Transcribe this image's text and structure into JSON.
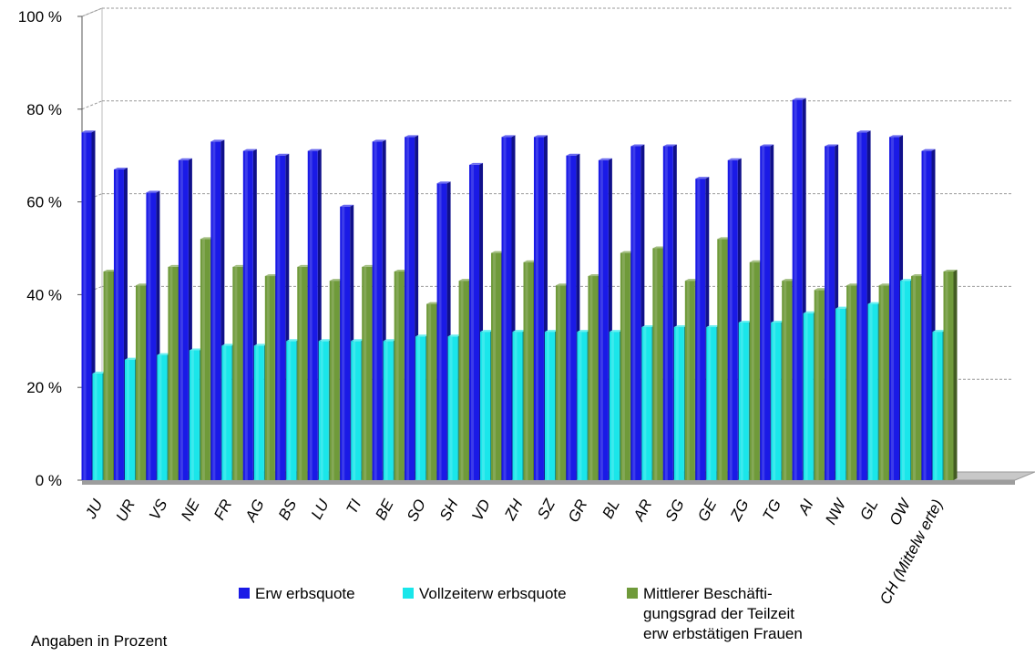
{
  "chart_data": {
    "type": "bar",
    "categories": [
      "JU",
      "UR",
      "VS",
      "NE",
      "FR",
      "AG",
      "BS",
      "LU",
      "TI",
      "BE",
      "SO",
      "SH",
      "VD",
      "ZH",
      "SZ",
      "GR",
      "BL",
      "AR",
      "SG",
      "GE",
      "ZG",
      "TG",
      "AI",
      "NW",
      "GL",
      "OW",
      "CH (Mittelwerte)"
    ],
    "series": [
      {
        "name": "Erwerbsquote",
        "color": "#1a1ae6",
        "values": [
          75,
          67,
          62,
          69,
          73,
          71,
          70,
          71,
          59,
          73,
          74,
          64,
          68,
          74,
          74,
          70,
          69,
          72,
          72,
          65,
          69,
          72,
          82,
          72,
          75,
          74,
          71
        ]
      },
      {
        "name": "Vollzeiterwerbsquote",
        "color": "#1ae6ea",
        "values": [
          23,
          26,
          27,
          28,
          29,
          29,
          30,
          30,
          30,
          30,
          31,
          31,
          32,
          32,
          32,
          32,
          32,
          33,
          33,
          33,
          34,
          34,
          36,
          37,
          38,
          43,
          32
        ]
      },
      {
        "name": "Mittlerer Beschäftigungsgrad der Teilzeit erwerbstätigen Frauen",
        "color": "#6f9a3a",
        "values": [
          45,
          42,
          46,
          52,
          46,
          44,
          46,
          43,
          46,
          45,
          38,
          43,
          49,
          47,
          42,
          44,
          49,
          50,
          43,
          52,
          47,
          43,
          41,
          42,
          42,
          44,
          45
        ]
      }
    ],
    "ytick_labels": [
      "0 %",
      "20 %",
      "40 %",
      "60 %",
      "80 %",
      "100 %"
    ],
    "ylim": [
      0,
      100
    ],
    "grid": true,
    "legend_position": "bottom"
  },
  "legend": [
    {
      "label": "Erw erbsquote",
      "color": "#1a1ae6"
    },
    {
      "label": "Vollzeiterw erbsquote",
      "color": "#1ae6ea"
    },
    {
      "label": "Mittlerer Beschäfti-\ngungsgrad der Teilzeit\nerw erbstätigen Frauen",
      "color": "#6f9a3a"
    }
  ],
  "category_labels": [
    "JU",
    "UR",
    "VS",
    "NE",
    "FR",
    "AG",
    "BS",
    "LU",
    "TI",
    "BE",
    "SO",
    "SH",
    "VD",
    "ZH",
    "SZ",
    "GR",
    "BL",
    "AR",
    "SG",
    "GE",
    "ZG",
    "TG",
    "AI",
    "NW",
    "GL",
    "OW",
    "CH (Mittelw erte)"
  ],
  "note": "Angaben in Prozent"
}
